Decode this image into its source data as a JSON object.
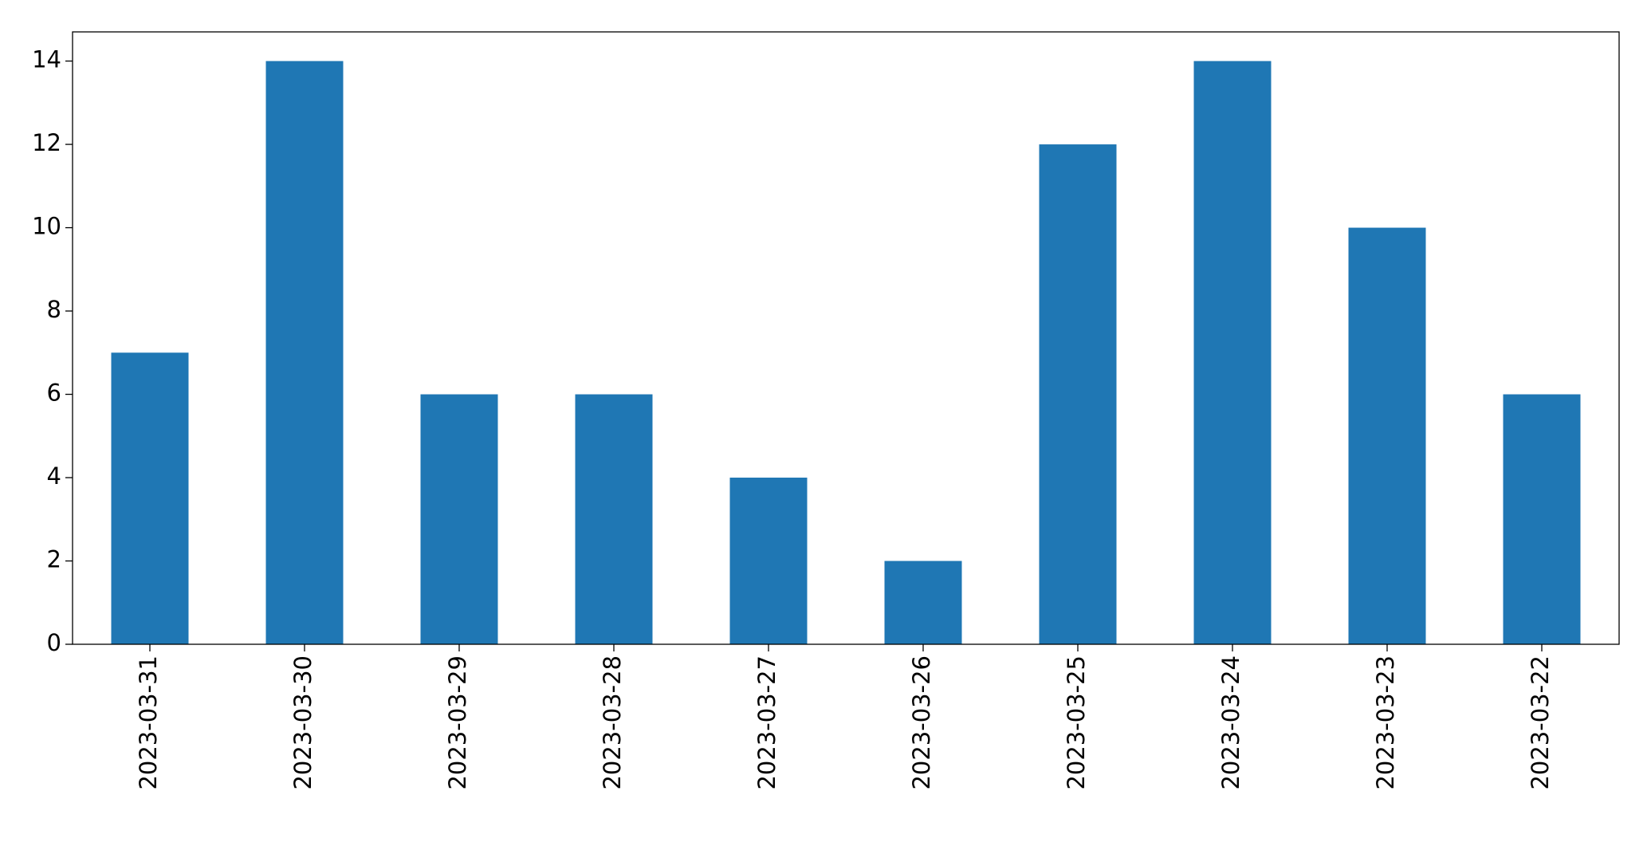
{
  "chart_data": {
    "type": "bar",
    "categories": [
      "2023-03-31",
      "2023-03-30",
      "2023-03-29",
      "2023-03-28",
      "2023-03-27",
      "2023-03-26",
      "2023-03-25",
      "2023-03-24",
      "2023-03-23",
      "2023-03-22"
    ],
    "values": [
      7,
      14,
      6,
      6,
      4,
      2,
      12,
      14,
      10,
      6
    ],
    "color": "#1f77b4",
    "ylim": [
      0,
      14.7
    ],
    "yticks": [
      0,
      2,
      4,
      6,
      8,
      10,
      12,
      14
    ],
    "grid": false
  }
}
